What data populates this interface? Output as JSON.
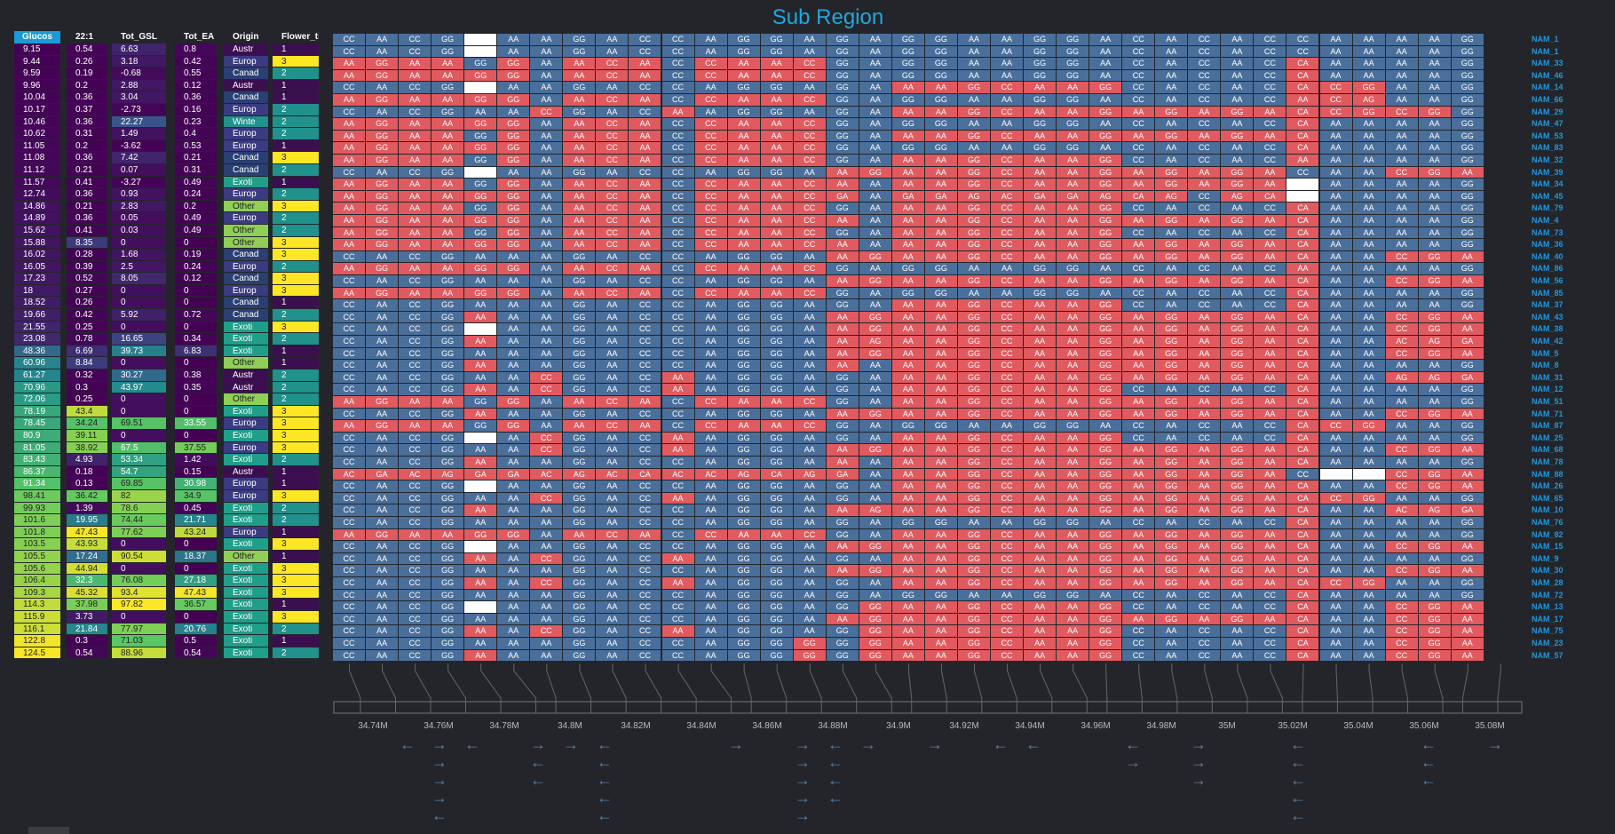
{
  "title": "Sub Region",
  "columns": [
    "Glucos",
    "22:1",
    "Tot_GSL",
    "Tot_EA",
    "Origin",
    "Flower_tim"
  ],
  "table": [
    [
      "9.15",
      "0.54",
      "6.63",
      "0.8",
      "Austr",
      "1"
    ],
    [
      "9.44",
      "0.26",
      "3.18",
      "0.42",
      "Europ",
      "3"
    ],
    [
      "9.59",
      "0.19",
      "-0.68",
      "0.55",
      "Canad",
      "2"
    ],
    [
      "9.96",
      "0.2",
      "2.88",
      "0.12",
      "Austr",
      "1"
    ],
    [
      "10.04",
      "0.36",
      "3.04",
      "0.36",
      "Canad",
      "1"
    ],
    [
      "10.17",
      "0.37",
      "-2.73",
      "0.16",
      "Europ",
      "2"
    ],
    [
      "10.46",
      "0.36",
      "22.27",
      "0.23",
      "Winte",
      "2"
    ],
    [
      "10.62",
      "0.31",
      "1.49",
      "0.4",
      "Europ",
      "2"
    ],
    [
      "11.05",
      "0.2",
      "-3.62",
      "0.53",
      "Europ",
      "1"
    ],
    [
      "11.08",
      "0.36",
      "7.42",
      "0.21",
      "Canad",
      "3"
    ],
    [
      "11.12",
      "0.21",
      "0.07",
      "0.31",
      "Canad",
      "2"
    ],
    [
      "11.57",
      "0.41",
      "-3.27",
      "0.49",
      "Exoti",
      "1"
    ],
    [
      "12.74",
      "0.36",
      "0.93",
      "0.24",
      "Europ",
      "2"
    ],
    [
      "14.86",
      "0.21",
      "2.83",
      "0.2",
      "Other",
      "3"
    ],
    [
      "14.89",
      "0.36",
      "0.05",
      "0.49",
      "Europ",
      "2"
    ],
    [
      "15.62",
      "0.41",
      "0.03",
      "0.49",
      "Other",
      "2"
    ],
    [
      "15.88",
      "8.35",
      "0",
      "0",
      "Other",
      "3"
    ],
    [
      "16.02",
      "0.28",
      "1.68",
      "0.19",
      "Canad",
      "3"
    ],
    [
      "16.05",
      "0.39",
      "2.5",
      "0.24",
      "Europ",
      "2"
    ],
    [
      "17.23",
      "0.52",
      "8.05",
      "0.12",
      "Canad",
      "3"
    ],
    [
      "18",
      "0.27",
      "0",
      "0",
      "Europ",
      "3"
    ],
    [
      "18.52",
      "0.26",
      "0",
      "0",
      "Canad",
      "1"
    ],
    [
      "19.66",
      "0.42",
      "5.92",
      "0.72",
      "Canad",
      "2"
    ],
    [
      "21.55",
      "0.25",
      "0",
      "0",
      "Exoti",
      "3"
    ],
    [
      "23.08",
      "0.78",
      "16.65",
      "0.34",
      "Exoti",
      "2"
    ],
    [
      "48.36",
      "6.69",
      "39.73",
      "6.83",
      "Exoti",
      "1"
    ],
    [
      "60.96",
      "8.84",
      "0",
      "0",
      "Other",
      "1"
    ],
    [
      "61.27",
      "0.32",
      "30.27",
      "0.38",
      "Austr",
      "2"
    ],
    [
      "70.96",
      "0.3",
      "43.97",
      "0.35",
      "Austr",
      "2"
    ],
    [
      "72.06",
      "0.25",
      "0",
      "0",
      "Other",
      "2"
    ],
    [
      "78.19",
      "43.4",
      "0",
      "0",
      "Exoti",
      "3"
    ],
    [
      "78.45",
      "34.24",
      "69.51",
      "33.55",
      "Europ",
      "3"
    ],
    [
      "80.9",
      "39.11",
      "0",
      "0",
      "Exoti",
      "3"
    ],
    [
      "81.05",
      "38.92",
      "67.5",
      "37.55",
      "Europ",
      "3"
    ],
    [
      "83.43",
      "4.93",
      "53.34",
      "1.42",
      "Exoti",
      "2"
    ],
    [
      "86.37",
      "0.18",
      "54.7",
      "0.15",
      "Austr",
      "1"
    ],
    [
      "91.34",
      "0.13",
      "69.85",
      "30.98",
      "Europ",
      "1"
    ],
    [
      "98.41",
      "36.42",
      "82",
      "34.9",
      "Europ",
      "3"
    ],
    [
      "99.93",
      "1.39",
      "78.6",
      "0.45",
      "Exoti",
      "2"
    ],
    [
      "101.6",
      "19.95",
      "74.44",
      "21.71",
      "Exoti",
      "2"
    ],
    [
      "101.8",
      "47.43",
      "77.62",
      "43.24",
      "Europ",
      "1"
    ],
    [
      "103.5",
      "43.93",
      "0",
      "0",
      "Exoti",
      "3"
    ],
    [
      "105.5",
      "17.24",
      "90.54",
      "18.37",
      "Other",
      "1"
    ],
    [
      "105.6",
      "44.94",
      "0",
      "0",
      "Exoti",
      "3"
    ],
    [
      "106.4",
      "32.3",
      "76.08",
      "27.18",
      "Exoti",
      "3"
    ],
    [
      "109.3",
      "45.32",
      "93.4",
      "47.43",
      "Exoti",
      "3"
    ],
    [
      "114.3",
      "37.98",
      "97.82",
      "36.57",
      "Exoti",
      "1"
    ],
    [
      "115.9",
      "3.73",
      "0",
      "0",
      "Exoti",
      "3"
    ],
    [
      "116.1",
      "21.84",
      "77.97",
      "20.76",
      "Exoti",
      "2"
    ],
    [
      "122.8",
      "0.3",
      "71.03",
      "0.5",
      "Exoti",
      "1"
    ],
    [
      "124.5",
      "0.54",
      "88.96",
      "0.54",
      "Exoti",
      "2"
    ]
  ],
  "row_labels": [
    "NAM_1",
    "NAM_1",
    "NAM_33",
    "NAM_46",
    "NAM_14",
    "NAM_66",
    "NAM_29",
    "NAM_47",
    "NAM_53",
    "NAM_83",
    "NAM_32",
    "NAM_39",
    "NAM_34",
    "NAM_45",
    "NAM_79",
    "NAM_4",
    "NAM_73",
    "NAM_36",
    "NAM_40",
    "NAM_86",
    "NAM_56",
    "NAM_85",
    "NAM_37",
    "NAM_43",
    "NAM_38",
    "NAM_42",
    "NAM_5",
    "NAM_8",
    "NAM_31",
    "NAM_12",
    "NAM_51",
    "NAM_71",
    "NAM_87",
    "NAM_25",
    "NAM_68",
    "NAM_78",
    "NAM_88",
    "NAM_26",
    "NAM_65",
    "NAM_10",
    "NAM_76",
    "NAM_82",
    "NAM_15",
    "NAM_9",
    "NAM_30",
    "NAM_28",
    "NAM_72",
    "NAM_13",
    "NAM_17",
    "NAM_75",
    "NAM_23",
    "NAM_57"
  ],
  "genotype_rows": [
    "CC AA CC GG __ AA AA GG AA CC CC AA GG GG AA GG AA GG GG AA AA GG GG AA CC AA CC AA CC CC AA AA AA AA GG",
    "CC AA CC GG __ AA AA GG AA CC CC AA GG GG AA GG AA GG GG AA AA GG GG AA CC AA CC AA CC CC AA AA AA AA GG",
    "AA GG AA AA GG GG AA AA CC AA CC CC AA AA CC GG AA GG GG AA AA GG GG AA CC AA CC AA CC CA AA AA AA AA GG",
    "AA GG AA AA GG GG AA AA CC AA CC CC AA AA CC GG AA GG GG AA AA GG GG AA CC AA CC AA CC CA AA AA AA AA GG",
    "CC AA CC GG __ AA AA GG AA CC CC AA GG GG AA GG AA AA AA GG CC AA AA GG CC AA CC AA CC CA CC GG AA AA GG",
    "AA GG AA AA GG GG AA AA CC AA CC CC AA AA CC GG AA GG GG AA AA GG GG AA CC AA CC AA CC AA CC AG AA AA GG",
    "CC AA CC GG AA AA CC GG AA CC AA AA GG GG AA GG AA AA AA GG CC AA AA GG AA GG AA GG AA CA CC GG CC GG GG",
    "AA GG AA AA GG GG AA AA CC AA CC CC AA AA CC GG AA GG GG AA AA GG GG AA CC AA CC AA CC CA AA AA AA AA GG",
    "AA GG AA AA GG GG AA AA CC AA CC CC AA AA CC GG AA AA AA GG CC AA AA GG AA GG AA GG AA CA AA AA AA AA GG",
    "AA GG AA AA GG GG AA AA CC AA CC CC AA AA CC GG AA GG GG AA AA GG GG AA CC AA CC AA CC CA AA AA AA AA GG",
    "AA GG AA AA GG GG AA AA CC AA CC CC AA AA CC GG AA AA AA GG CC AA AA GG CC AA CC AA CC AA AA AA AA AA GG",
    "CC AA CC GG __ AA AA GG AA CC CC AA GG GG AA AA GG AA AA GG CC AA AA GG AA GG AA GG AA CC AA AA CC GG AA",
    "AA GG AA AA GG GG AA AA CC AA CC CC AA AA CC AA AA AA AA GG CC AA AA GG AA GG AA GG AA __ AA AA AA AA GG",
    "AA GG AA AA GG GG AA AA CC AA CC CC AA AA CC GA AA GA GA AG AC GA GA AG CA AG CC AG CA __ AA AA AA AA GG",
    "AA GG AA AA GG GG AA AA CC AA CC CC AA AA CC GG AA AA AA GG CC AA AA GG CC AA CC AA CC CA AA AA AA AA GG",
    "AA GG AA AA GG GG AA AA CC AA CC CC AA AA CC AA AA AA AA GG CC AA AA GG AA GG AA GG AA CA AA AA AA AA GG",
    "AA GG AA AA GG GG AA AA CC AA CC CC AA AA CC GG AA AA AA GG CC AA AA GG CC AA CC AA CC CA AA AA AA AA GG",
    "AA GG AA AA GG GG AA AA CC AA CC CC AA AA CC AA AA AA AA GG CC AA AA GG AA GG AA GG AA CA AA AA AA AA GG",
    "CC AA CC GG AA AA AA GG AA CC CC AA GG GG AA AA GG AA AA GG CC AA AA GG AA GG AA GG AA CA AA AA CC GG AA",
    "AA GG AA AA GG GG AA AA CC AA CC CC AA AA CC GG AA GG GG AA AA GG GG AA CC AA CC AA CC AA AA AA AA AA GG",
    "CC AA CC GG AA AA AA GG AA CC CC AA GG GG AA AA GG AA AA GG CC AA AA GG AA GG AA GG AA CA AA AA CC GG AA",
    "AA GG AA AA GG GG AA AA CC AA CC CC AA AA CC GG AA GG GG AA AA GG GG AA CC AA CC AA CC CA AA AA AA AA GG",
    "CC AA CC GG AA AA AA GG AA CC CC AA GG GG AA GG AA AA AA GG CC AA AA GG CC AA CC AA CC CA AA AA AA AA GG",
    "CC AA CC GG AA AA AA GG AA CC CC AA GG GG AA AA GG AA AA GG CC AA AA GG AA GG AA GG AA CA AA AA CC GG AA",
    "CC AA CC GG __ AA AA GG AA CC CC AA GG GG AA AA GG AA AA GG CC AA AA GG AA GG AA GG AA CA AA AA CC GG AA",
    "CC AA CC GG AA AA AA GG AA CC CC AA GG GG AA AA AG AA AA GG CC AA AA GG AA GG AA GG AA CA AA AA AC AG GA",
    "CC AA CC GG AA AA AA GG AA CC CC AA GG GG AA AA GG AA AA GG CC AA AA GG AA GG AA GG AA CA AA AA CC GG AA",
    "CC AA CC GG AA AA AA GG AA CC CC AA GG GG AA AA AA AA AA GG CC AA AA GG AA GG AA GG AA CA AA AA AA AA GG",
    "CC AA CC GG AA AA CC GG AA CC AA AA GG GG AA GG AA AA AA GG CC AA AA GG AA GG AA GG AA CA AA AA AG AG GA",
    "CC AA CC GG AA AA CC GG AA CC AA AA GG GG AA GG AA AA AA GG CC AA AA GG CC AA CC AA CC CA AA AA AA AA GG",
    "AA GG AA AA GG GG AA AA CC AA CC CC AA AA CC GG AA AA AA GG CC AA AA GG AA GG AA GG AA CA AA AA AA AA GG",
    "CC AA CC GG AA AA AA GG AA CC CC AA GG GG AA AA GG AA AA GG CC AA AA GG AA GG AA GG AA CA AA AA CC GG AA",
    "AA GG AA AA GG GG AA AA CC AA CC CC AA AA CC GG AA GG GG AA AA GG GG AA CC AA CC AA CC CA CC GG AA AA GG",
    "CC AA CC GG __ AA CC GG AA CC AA AA GG GG AA GG AA AA AA GG CC AA AA GG CC AA CC AA CC CA AA AA AA AA GG",
    "CC AA CC GG AA AA CC GG AA CC AA AA GG GG AA AA GG AA AA GG CC AA AA GG AA GG AA GG AA CA AA AA CC GG AA",
    "CC AA CC GG AA AA AA GG AA CC CC AA GG GG AA AA AA AA AA GG CC AA AA GG AA GG AA GG AA CA AA AA AA AA GG",
    "AC GA AC AG GA GA AC AG AC CA AC AC AG CA AG GA AA AA AA GG CC AA AA GG AA GG AA GG AA CC __ __ CC GG AA",
    "CC AA CC GG __ AA AA GG AA CC CC AA GG GG AA GG AA AA AA GG CC AA AA GG AA GG AA GG AA CA AA AA CC GG AA",
    "CC AA CC GG AA AA CC GG AA CC AA AA GG GG AA GG AA AA AA GG CC AA AA GG AA GG AA GG AA CA CC GG AA AA GG",
    "CC AA CC GG AA AA AA GG AA CC CC AA GG GG AA AA AG AA AA GG CC AA AA GG AA GG AA GG AA CA AA AA AC AG GA",
    "CC AA CC GG AA AA AA GG AA CC CC AA GG GG AA GG AA GG GG AA AA GG GG AA CC AA CC AA CC CA AA AA AA AA GG",
    "AA GG AA AA GG GG AA AA CC AA CC CC AA AA CC GG AA AA AA GG CC AA AA GG AA GG AA GG AA CA AA AA AA AA GG",
    "CC AA CC GG __ AA AA GG AA CC CC AA GG GG AA AA GG AA AA GG CC AA AA GG AA GG AA GG AA CA AA AA CC GG AA",
    "CC AA CC GG AA AA CC GG AA CC AA AA GG GG AA GG AA AA AA GG CC AA AA GG AA GG AA GG AA CA AA AA AA AA GG",
    "CC AA CC GG AA AA AA GG AA CC CC AA GG GG AA AA GG AA AA GG CC AA AA GG AA GG AA GG AA CA AA AA CC GG AA",
    "CC AA CC GG AA AA CC GG AA CC AA AA GG GG AA GG AA AA AA GG CC AA AA GG AA GG AA GG AA CA CC GG AA AA GG",
    "CC AA CC GG AA AA AA GG AA CC CC AA GG GG AA GG AA GG GG AA AA GG GG AA CC AA CC AA CC CA AA AA AA AA GG",
    "CC AA CC GG __ AA AA GG AA CC CC AA GG GG AA GG GG AA AA GG CC AA AA GG CC AA CC AA CC CA AA AA CC GG AA",
    "CC AA CC GG AA AA AA GG AA CC CC AA GG GG AA AA GG AA AA GG CC AA AA GG AA GG AA GG AA CA AA AA CC GG AA",
    "CC AA CC GG AA AA CC GG AA CC AA AA GG GG AA GG GG AA AA GG CC AA AA GG CC AA CC AA CC CA AA AA CC GG AA",
    "CC AA CC GG AA AA AA GG AA CC CC AA GG GG GG GG GG AA AA GG CC AA AA GG CC AA CC AA CC CA AA AA CC GG AA",
    "CC AA CC GG AA AA AA GG AA CC CC AA GG GG GG GG GG AA AA GG CC AA AA GG CC AA CC AA CC CA AA AA CC GG AA"
  ],
  "axis_ticks": [
    "34.74M",
    "34.76M",
    "34.78M",
    "34.8M",
    "34.82M",
    "34.84M",
    "34.86M",
    "34.88M",
    "34.9M",
    "34.92M",
    "34.94M",
    "34.96M",
    "34.98M",
    "35M",
    "35.02M",
    "35.04M",
    "35.06M",
    "35.08M"
  ],
  "colors": {
    "ref": "#4a6f9a",
    "alt": "#e15a5f",
    "missing": "#ffffff",
    "accent": "#1b9ad6",
    "label": "#2596d8"
  }
}
